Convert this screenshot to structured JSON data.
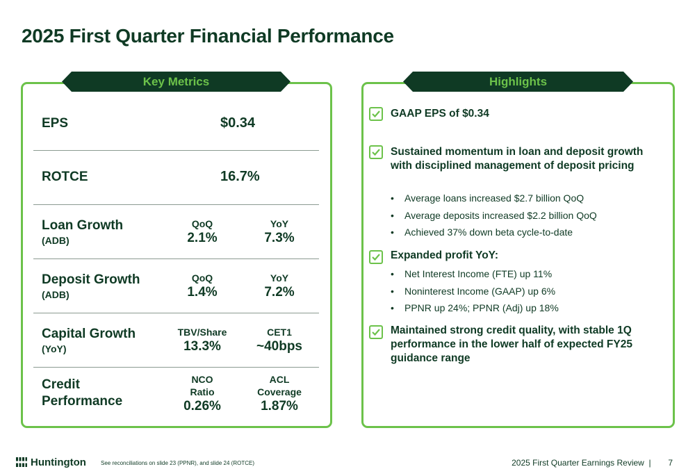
{
  "title": "2025 First Quarter Financial Performance",
  "colors": {
    "brand_dark": "#0f3a24",
    "brand_green": "#6cc24a"
  },
  "key_metrics": {
    "tab_label": "Key Metrics",
    "eps": {
      "label": "EPS",
      "value": "$0.34"
    },
    "rotce": {
      "label": "ROTCE",
      "value": "16.7%"
    },
    "loan_growth": {
      "label": "Loan Growth",
      "sub": "(ADB)",
      "col1_header": "QoQ",
      "col1_value": "2.1%",
      "col2_header": "YoY",
      "col2_value": "7.3%"
    },
    "deposit_growth": {
      "label": "Deposit Growth",
      "sub": "(ADB)",
      "col1_header": "QoQ",
      "col1_value": "1.4%",
      "col2_header": "YoY",
      "col2_value": "7.2%"
    },
    "capital_growth": {
      "label": "Capital Growth",
      "sub": "(YoY)",
      "col1_header": "TBV/Share",
      "col1_value": "13.3%",
      "col2_header": "CET1",
      "col2_value": "~40bps"
    },
    "credit_performance": {
      "label_line1": "Credit",
      "label_line2": "Performance",
      "col1_header_line1": "NCO",
      "col1_header_line2": "Ratio",
      "col1_value": "0.26%",
      "col2_header_line1": "ACL",
      "col2_header_line2": "Coverage",
      "col2_value": "1.87%"
    }
  },
  "highlights": {
    "tab_label": "Highlights",
    "items": [
      {
        "text": "GAAP EPS of $0.34",
        "bullets": []
      },
      {
        "text": "Sustained momentum in loan and deposit growth with disciplined management of deposit pricing",
        "bullets": [
          "Average loans increased $2.7 billion QoQ",
          "Average deposits increased $2.2 billion QoQ",
          "Achieved 37% down beta cycle-to-date"
        ]
      },
      {
        "text": "Expanded profit YoY:",
        "bullets": [
          "Net Interest Income (FTE) up 11%",
          "Noninterest Income (GAAP) up 6%",
          "PPNR up 24%; PPNR (Adj) up 18%"
        ]
      },
      {
        "text": "Maintained strong credit quality, with stable 1Q performance in the lower half of expected FY25 guidance range",
        "bullets": []
      }
    ],
    "bullet_char": "•"
  },
  "footer": {
    "logo_text": "Huntington",
    "footnote": "See reconciliations on slide 23 (PPNR), and slide 24 (ROTCE)",
    "right_text": "2025 First Quarter Earnings Review  |",
    "page_number": "7"
  }
}
